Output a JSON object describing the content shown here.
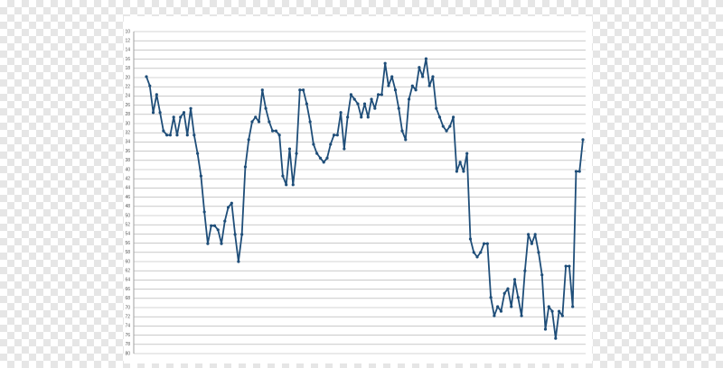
{
  "chart_data": {
    "type": "line",
    "y_reversed": true,
    "grid": true,
    "categories": [
      null,
      null,
      null,
      null,
      null,
      null,
      null,
      null,
      null,
      null,
      null,
      null,
      null,
      null,
      null,
      null,
      null,
      null,
      null,
      null,
      null,
      null,
      null,
      null,
      null,
      null,
      null,
      null,
      null,
      null,
      null,
      null,
      null,
      null,
      null,
      null,
      null,
      null,
      null,
      null,
      null,
      null,
      null,
      null,
      null,
      null,
      null,
      null,
      null,
      null,
      null,
      null,
      null,
      null,
      null,
      null,
      null,
      null,
      null,
      null,
      null,
      null,
      null,
      null,
      null,
      null,
      null,
      null,
      null,
      null,
      null,
      null,
      null,
      null,
      null,
      null,
      null,
      null,
      null,
      null,
      null,
      null,
      null,
      null,
      null,
      null,
      null,
      null,
      null,
      null,
      null,
      null,
      null,
      null,
      null,
      null,
      null,
      null,
      null,
      null,
      null,
      null,
      null,
      null,
      null,
      null,
      null,
      null,
      null,
      null,
      null,
      null,
      null,
      null,
      null,
      null,
      null,
      null,
      null,
      null,
      null,
      null,
      null,
      null,
      null,
      null,
      null,
      null,
      null
    ],
    "series": [
      {
        "color": "#1f4e79",
        "values": [
          19.8,
          21.8,
          27.6,
          23.7,
          27.6,
          31.6,
          32.5,
          32.5,
          28.6,
          32.5,
          28.6,
          27.6,
          32.5,
          26.7,
          32.5,
          36.5,
          41.4,
          49.2,
          56.1,
          52.2,
          52.2,
          53.1,
          56.1,
          51.2,
          48.2,
          47.3,
          54.1,
          60,
          54.1,
          39.4,
          33.5,
          29.6,
          28.6,
          29.6,
          22.7,
          26.7,
          29.6,
          31.6,
          31.6,
          32.5,
          41.4,
          43.3,
          35.5,
          43.3,
          36.5,
          22.7,
          22.7,
          25.7,
          29.6,
          34.5,
          36.5,
          37.5,
          38.4,
          37.5,
          34.5,
          32.5,
          32.5,
          27.6,
          35.5,
          28.6,
          23.7,
          24.7,
          25.7,
          28.6,
          25.7,
          28.6,
          24.7,
          26.7,
          23.7,
          23.7,
          16.9,
          21.8,
          19.8,
          22.7,
          26.7,
          31.6,
          33.5,
          24.7,
          21.8,
          22.7,
          17.8,
          19.8,
          15.9,
          21.8,
          19.8,
          26.7,
          28.6,
          30.6,
          31.6,
          30.6,
          28.6,
          40.4,
          38.4,
          40.4,
          36.5,
          55.1,
          58,
          59,
          58,
          56.1,
          56.1,
          67.8,
          71.8,
          69.8,
          70.8,
          66.9,
          65.9,
          69.8,
          63.9,
          67.8,
          71.8,
          62,
          54.1,
          56.1,
          54.1,
          58,
          62.9,
          74.7,
          69.8,
          70.8,
          76.7,
          70.8,
          71.8,
          61,
          61,
          69.8,
          40.4,
          40.4,
          33.5
        ]
      }
    ],
    "ylim": [
      10,
      80
    ],
    "yticks": [
      10,
      12,
      14,
      16,
      18,
      20,
      22,
      24,
      26,
      28,
      30,
      32,
      34,
      36,
      38,
      40,
      42,
      44,
      46,
      48,
      50,
      52,
      54,
      56,
      58,
      60,
      62,
      64,
      66,
      68,
      70,
      72,
      74,
      76,
      78,
      80
    ]
  }
}
